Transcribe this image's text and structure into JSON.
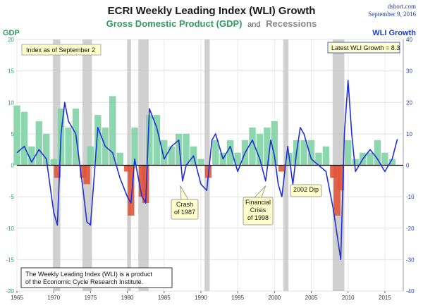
{
  "header": {
    "title": "ECRI Weekly Leading Index (WLI) Growth",
    "subtitle_gdp": "Gross Domestic Product (GDP)",
    "subtitle_and": "and",
    "subtitle_rec": "Recessions",
    "credit_site": "dshort.com",
    "credit_date": "September 9, 2016"
  },
  "colors": {
    "gdp_pos": "#7fd3a4",
    "gdp_neg": "#e0553a",
    "wli_line": "#1f2fdc",
    "recession": "#c8c8c8",
    "gdp_text": "#2e9e5e",
    "wli_text": "#1f3fc0",
    "rec_text": "#8a8a8a",
    "box_fill": "#ffffcc"
  },
  "boxes": {
    "index_date": "Index as of September 2",
    "latest": "Latest WLI Growth = 8.3",
    "source_line1": "The Weekly Leading Index (WLI) is a product",
    "source_line2": "of the Economic Cycle Research Institute."
  },
  "annotations": [
    {
      "id": "crash-1987",
      "lines": [
        "Crash",
        "of 1987"
      ],
      "x": 1987.2,
      "y_wli": -6.5
    },
    {
      "id": "crisis-1998",
      "lines": [
        "Financial",
        "Crisis",
        "of 1998"
      ],
      "x": 1998.8,
      "y_wli": -6.5
    },
    {
      "id": "dip-2002",
      "lines": [
        "2002 Dip"
      ],
      "x": 2002.4,
      "y_wli": -7.5
    }
  ],
  "chart_data": {
    "type": "bar",
    "title": "ECRI Weekly Leading Index (WLI) Growth",
    "left_axis_label": "GDP",
    "right_axis_label": "WLI Growth",
    "xlim": [
      1965,
      2017.5
    ],
    "ylim_left": [
      -20,
      20
    ],
    "ylim_right": [
      -40,
      40
    ],
    "x_ticks": [
      1965,
      1970,
      1975,
      1980,
      1985,
      1990,
      1995,
      2000,
      2005,
      2010,
      2015
    ],
    "y_ticks_left": [
      -20,
      -15,
      -10,
      -5,
      0,
      5,
      10,
      15,
      20
    ],
    "y_ticks_right": [
      -40,
      -30,
      -20,
      -10,
      0,
      10,
      20,
      30,
      40
    ],
    "grid": true,
    "recessions": [
      [
        1969.9,
        1970.9
      ],
      [
        1973.9,
        1975.2
      ],
      [
        1980.0,
        1980.5
      ],
      [
        1981.5,
        1982.9
      ],
      [
        1990.5,
        1991.2
      ],
      [
        2001.2,
        2001.9
      ],
      [
        2007.9,
        2009.5
      ]
    ],
    "gdp_series": {
      "name": "GDP",
      "x": [
        1965,
        1966,
        1967,
        1968,
        1969,
        1970,
        1970.5,
        1971,
        1972,
        1973,
        1974,
        1974.5,
        1975,
        1976,
        1977,
        1978,
        1979,
        1980,
        1980.5,
        1981,
        1982,
        1982.5,
        1983,
        1984,
        1985,
        1986,
        1987,
        1988,
        1989,
        1990,
        1991,
        1992,
        1993,
        1994,
        1995,
        1996,
        1997,
        1998,
        1999,
        2000,
        2001,
        2002,
        2003,
        2004,
        2005,
        2006,
        2007,
        2008,
        2008.5,
        2009,
        2010,
        2011,
        2012,
        2013,
        2014,
        2015,
        2016
      ],
      "values": [
        9.5,
        8.5,
        3,
        7,
        5,
        1,
        -2,
        9,
        6,
        9,
        -2,
        -3,
        3,
        8,
        6,
        11,
        2,
        -1,
        -8,
        6,
        -5,
        -6,
        8,
        8,
        4,
        3,
        5,
        5,
        3,
        1,
        -2,
        4,
        2,
        4,
        2,
        4,
        6,
        5,
        6,
        7,
        -1,
        2,
        4,
        4,
        4,
        2,
        3,
        -2,
        -8,
        -4,
        4,
        1,
        2,
        2,
        4,
        2,
        1
      ]
    },
    "wli_series": {
      "name": "WLI Growth",
      "x": [
        1965,
        1966,
        1967,
        1968,
        1969,
        1970,
        1970.5,
        1971,
        1971.5,
        1972,
        1973,
        1974,
        1974.5,
        1975,
        1976,
        1977,
        1978,
        1979,
        1980,
        1980.5,
        1981,
        1982,
        1982.5,
        1983,
        1984,
        1985,
        1986,
        1987,
        1987.5,
        1988,
        1989,
        1990,
        1990.8,
        1991.5,
        1992,
        1993,
        1994,
        1995,
        1996,
        1997,
        1998,
        1998.8,
        1999.5,
        2000,
        2000.5,
        2001,
        2001.8,
        2002.5,
        2003,
        2003.5,
        2004,
        2005,
        2006,
        2007,
        2008,
        2008.5,
        2009,
        2009.5,
        2010,
        2010.5,
        2011,
        2012,
        2013,
        2014,
        2015,
        2016,
        2016.7
      ],
      "values": [
        4,
        6,
        1,
        5,
        2,
        -15,
        -19,
        10,
        20,
        14,
        10,
        -8,
        -18,
        -19,
        12,
        6,
        4,
        -4,
        -10,
        -12,
        2,
        -10,
        -12,
        18,
        12,
        2,
        6,
        8,
        -5,
        0,
        3,
        -6,
        -8,
        8,
        10,
        2,
        6,
        -2,
        4,
        8,
        2,
        -5,
        8,
        3,
        -6,
        -10,
        6,
        -6,
        4,
        12,
        10,
        2,
        0,
        -2,
        -14,
        -22,
        -30,
        10,
        27,
        10,
        -2,
        2,
        5,
        2,
        -2,
        2,
        8.3
      ]
    }
  }
}
